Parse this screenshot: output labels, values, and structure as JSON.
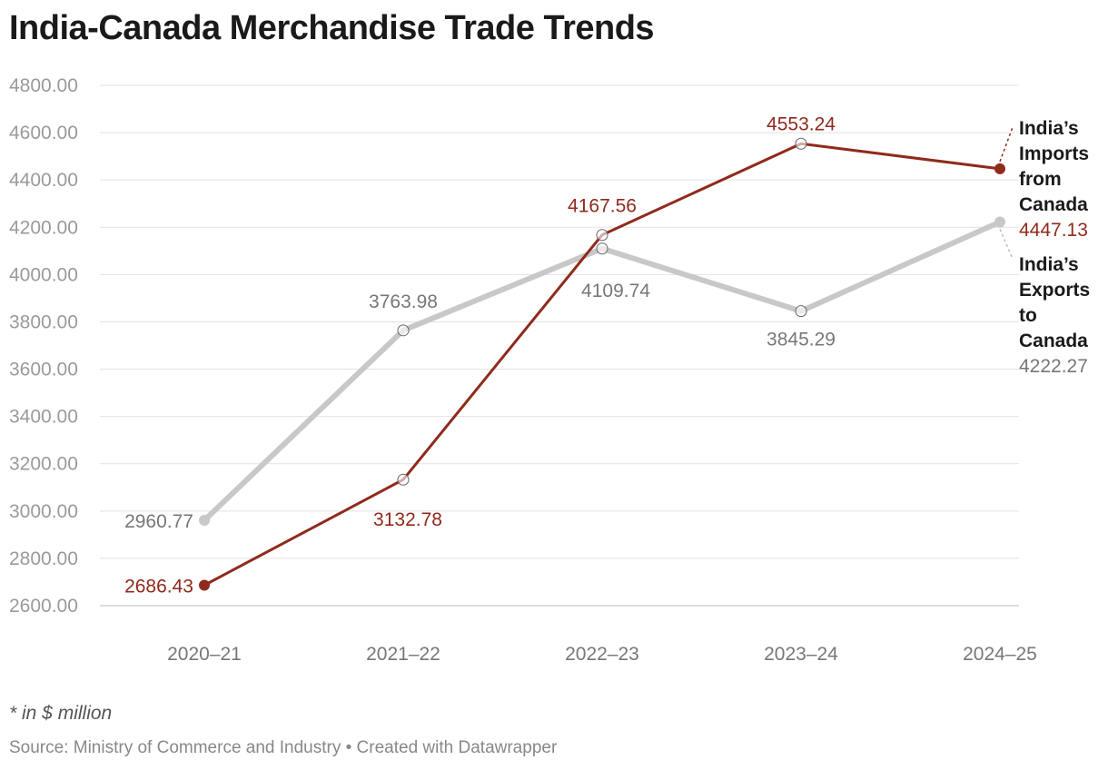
{
  "chart_data": {
    "type": "line",
    "title": "India-Canada Merchandise Trade Trends",
    "categories": [
      "2020–21",
      "2021–22",
      "2022–23",
      "2023–24",
      "2024–25"
    ],
    "ylim": [
      2600,
      4800
    ],
    "yticks": [
      "4800.00",
      "4600.00",
      "4400.00",
      "4200.00",
      "4000.00",
      "3800.00",
      "3600.00",
      "3400.00",
      "3200.00",
      "3000.00",
      "2800.00",
      "2600.00"
    ],
    "grid": true,
    "legend": "right, inline labels",
    "series": [
      {
        "name": "India’s Imports from Canada",
        "name_lines": [
          "India’s",
          "Imports",
          "from",
          "Canada"
        ],
        "values": [
          2686.43,
          3132.78,
          4167.56,
          4553.24,
          4447.13
        ],
        "labels": [
          "2686.43",
          "3132.78",
          "4167.56",
          "4553.24",
          "4447.13"
        ],
        "color": "#8f2a1c"
      },
      {
        "name": "India’s Exports to Canada",
        "name_lines": [
          "India’s",
          "Exports",
          "to",
          "Canada"
        ],
        "values": [
          2960.77,
          3763.98,
          4109.74,
          3845.29,
          4222.27
        ],
        "labels": [
          "2960.77",
          "3763.98",
          "4109.74",
          "3845.29",
          "4222.27"
        ],
        "color": "#c8c8c8",
        "label_color": "#777777"
      }
    ],
    "note": "* in $ million"
  },
  "footer": {
    "source": "Source: Ministry of Commerce and Industry • Created with Datawrapper"
  }
}
